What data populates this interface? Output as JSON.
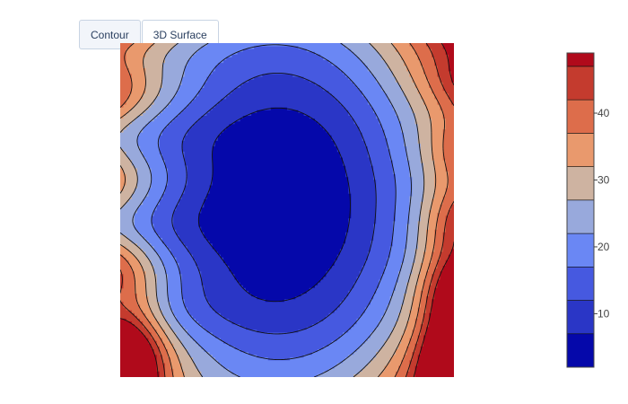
{
  "tabs": [
    {
      "label": "Contour",
      "active": true
    },
    {
      "label": "3D Surface",
      "active": false
    }
  ],
  "colors": {
    "scale": [
      "#0508aa",
      "#2a36c6",
      "#4659e0",
      "#6a87f4",
      "#98a9dc",
      "#ceb3a1",
      "#e9996d",
      "#dd6d4b",
      "#c43b2e",
      "#b00a1b"
    ],
    "line": "#111111",
    "tab_border": "#c8d4e3",
    "tab_text": "#2a3f5f"
  },
  "chart_data": {
    "type": "contour",
    "title": "",
    "xlabel": "",
    "ylabel": "",
    "colorscale": "coolwarm",
    "zmin": 2,
    "zmax": 49,
    "contour_levels": [
      2,
      7,
      12,
      17,
      22,
      27,
      32,
      37,
      42,
      47,
      49
    ],
    "colorbar_ticks": [
      10,
      20,
      30,
      40
    ],
    "colorbar_tick_labels": [
      "10",
      "20",
      "30",
      "40"
    ],
    "note_values": {
      "minimum_region": "center",
      "maximum_region": "lower-left",
      "secondary_high": "lower-right"
    }
  }
}
